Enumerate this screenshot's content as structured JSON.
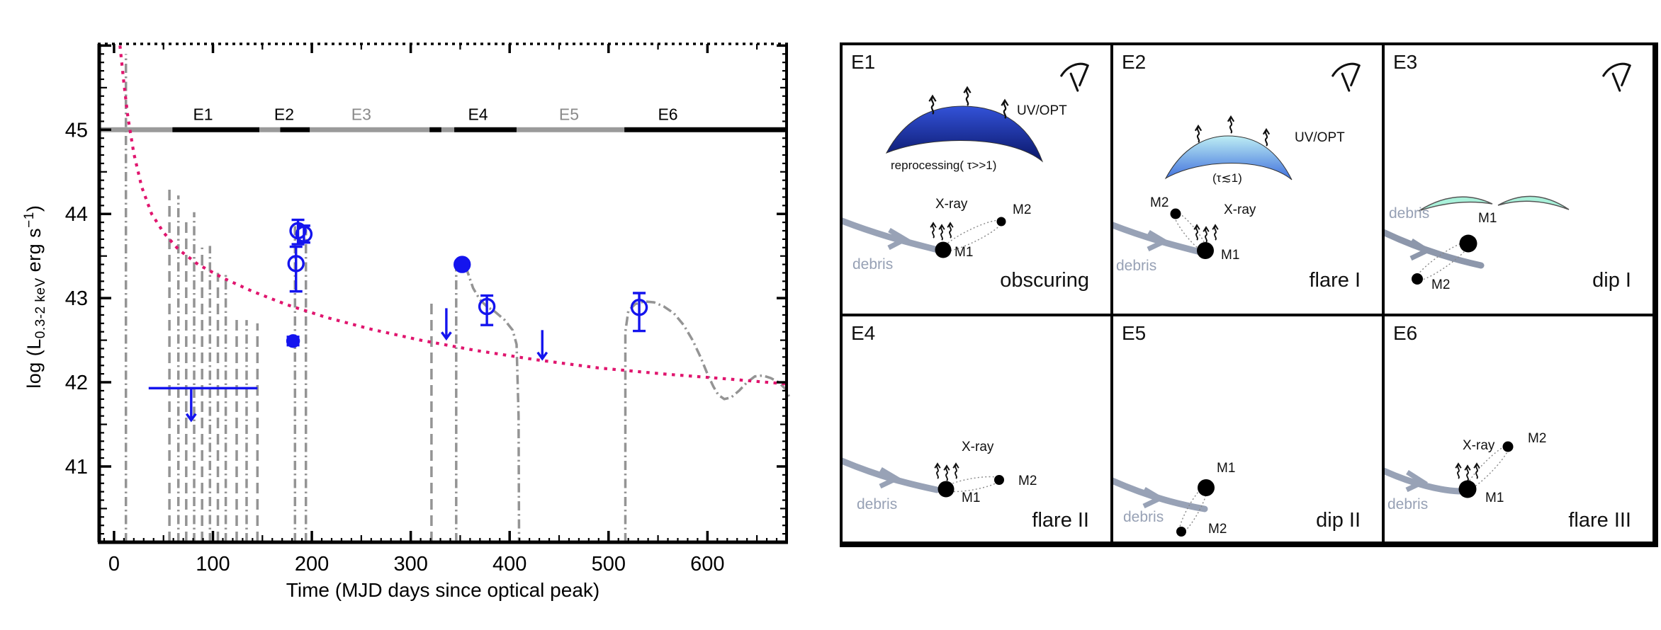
{
  "figure": {
    "description": "X-ray light curve with epochs E1-E6 and schematic cartoons"
  },
  "chart_data": {
    "type": "line",
    "title": "",
    "xlabel": "Time (MJD days since optical peak)",
    "ylabel": {
      "pre": "log (L",
      "sub": "0.3-2 keV",
      "mid": " erg s",
      "sup": "−1",
      "post": ")"
    },
    "xlim": [
      -15,
      680
    ],
    "ylim": [
      40.1,
      46.02
    ],
    "xticks": [
      0,
      100,
      200,
      300,
      400,
      500,
      600
    ],
    "yticks": [
      41,
      42,
      43,
      44,
      45
    ],
    "x_minor_step": 10,
    "y_minor_step": 0.1,
    "grid": false,
    "colors": {
      "data": "#1414ee",
      "decline": "#e0156e",
      "gray": "#949494",
      "bar_black": "#000000",
      "bar_gray": "#9a9a9a",
      "label_gray": "#8a8a8a",
      "label_black": "#000000"
    },
    "epoch_bar": {
      "y": 45,
      "segments": [
        {
          "x0": -15,
          "x1": 59,
          "color": "gray"
        },
        {
          "x0": 59,
          "x1": 147,
          "color": "black"
        },
        {
          "x0": 147,
          "x1": 168,
          "color": "gray"
        },
        {
          "x0": 168,
          "x1": 198,
          "color": "black"
        },
        {
          "x0": 198,
          "x1": 319,
          "color": "gray"
        },
        {
          "x0": 319,
          "x1": 331,
          "color": "black"
        },
        {
          "x0": 331,
          "x1": 344,
          "color": "gray"
        },
        {
          "x0": 344,
          "x1": 407,
          "color": "black"
        },
        {
          "x0": 407,
          "x1": 516,
          "color": "gray"
        },
        {
          "x0": 516,
          "x1": 680,
          "color": "black"
        }
      ],
      "labels": [
        {
          "text": "E1",
          "x": 90,
          "shade": "black"
        },
        {
          "text": "E2",
          "x": 172,
          "shade": "black"
        },
        {
          "text": "E3",
          "x": 250,
          "shade": "gray"
        },
        {
          "text": "E4",
          "x": 368,
          "shade": "black"
        },
        {
          "text": "E5",
          "x": 460,
          "shade": "gray"
        },
        {
          "text": "E6",
          "x": 560,
          "shade": "black"
        }
      ]
    },
    "decline_curve": {
      "points": [
        [
          6,
          46.0
        ],
        [
          10,
          45.55
        ],
        [
          14,
          45.15
        ],
        [
          20,
          44.72
        ],
        [
          28,
          44.32
        ],
        [
          38,
          44.0
        ],
        [
          50,
          43.78
        ],
        [
          65,
          43.58
        ],
        [
          85,
          43.4
        ],
        [
          110,
          43.24
        ],
        [
          140,
          43.08
        ],
        [
          175,
          42.92
        ],
        [
          215,
          42.77
        ],
        [
          260,
          42.63
        ],
        [
          310,
          42.5
        ],
        [
          365,
          42.38
        ],
        [
          425,
          42.27
        ],
        [
          490,
          42.17
        ],
        [
          555,
          42.1
        ],
        [
          620,
          42.04
        ],
        [
          680,
          41.98
        ]
      ]
    },
    "gray_segments": [
      {
        "dash": "dd",
        "pts": [
          [
            12,
            40.1
          ],
          [
            12,
            45.9
          ]
        ]
      },
      {
        "dash": "long",
        "pts": [
          [
            56,
            40.1
          ],
          [
            56,
            44.3
          ]
        ]
      },
      {
        "dash": "dd",
        "pts": [
          [
            65,
            40.1
          ],
          [
            65,
            44.22
          ]
        ]
      },
      {
        "dash": "long",
        "pts": [
          [
            73,
            40.1
          ],
          [
            73,
            43.95
          ]
        ]
      },
      {
        "dash": "dd",
        "pts": [
          [
            81,
            40.1
          ],
          [
            81,
            44.02
          ]
        ]
      },
      {
        "dash": "long",
        "pts": [
          [
            89,
            40.1
          ],
          [
            89,
            43.6
          ]
        ]
      },
      {
        "dash": "dd",
        "pts": [
          [
            97,
            40.1
          ],
          [
            97,
            43.62
          ]
        ]
      },
      {
        "dash": "long",
        "pts": [
          [
            105,
            40.1
          ],
          [
            105,
            43.3
          ]
        ]
      },
      {
        "dash": "dd",
        "pts": [
          [
            113,
            40.1
          ],
          [
            113,
            43.28
          ]
        ]
      },
      {
        "dash": "long",
        "pts": [
          [
            124,
            40.1
          ],
          [
            124,
            42.78
          ]
        ]
      },
      {
        "dash": "dd",
        "pts": [
          [
            134,
            40.1
          ],
          [
            134,
            42.74
          ]
        ]
      },
      {
        "dash": "long",
        "pts": [
          [
            145,
            40.1
          ],
          [
            145,
            42.7
          ]
        ]
      },
      {
        "dash": "dd",
        "pts": [
          [
            183,
            40.1
          ],
          [
            183,
            43.88
          ]
        ]
      },
      {
        "dash": "dd",
        "pts": [
          [
            194,
            40.1
          ],
          [
            194,
            43.82
          ]
        ]
      },
      {
        "dash": "long",
        "pts": [
          [
            321,
            40.1
          ],
          [
            321,
            42.95
          ]
        ]
      },
      {
        "dash": "dd",
        "pts": [
          [
            346,
            40.1
          ],
          [
            346,
            43.36
          ],
          [
            350,
            43.43
          ],
          [
            356,
            43.36
          ],
          [
            363,
            43.12
          ],
          [
            370,
            42.98
          ],
          [
            377,
            42.9
          ],
          [
            385,
            42.84
          ],
          [
            395,
            42.74
          ],
          [
            403,
            42.62
          ],
          [
            407,
            42.45
          ],
          [
            409,
            41.6
          ],
          [
            409.5,
            40.1
          ]
        ]
      },
      {
        "dash": "dd",
        "pts": [
          [
            517,
            40.1
          ],
          [
            517,
            42.6
          ],
          [
            520,
            42.85
          ],
          [
            527,
            42.93
          ],
          [
            536,
            42.96
          ],
          [
            546,
            42.95
          ],
          [
            556,
            42.9
          ],
          [
            566,
            42.82
          ],
          [
            576,
            42.68
          ],
          [
            585,
            42.5
          ],
          [
            593,
            42.3
          ],
          [
            600,
            42.1
          ],
          [
            606,
            41.95
          ],
          [
            611,
            41.85
          ],
          [
            617,
            41.8
          ],
          [
            624,
            41.82
          ],
          [
            632,
            41.9
          ],
          [
            640,
            42.0
          ],
          [
            648,
            42.07
          ],
          [
            656,
            42.08
          ],
          [
            664,
            42.05
          ],
          [
            672,
            42.0
          ],
          [
            679,
            41.92
          ],
          [
            683,
            41.82
          ]
        ]
      }
    ],
    "data_points": [
      {
        "x": 186,
        "y": 43.8,
        "eu": 0.13,
        "ed": 0.16,
        "style": "open"
      },
      {
        "x": 192,
        "y": 43.76,
        "eu": 0.1,
        "ed": 0.1,
        "style": "open"
      },
      {
        "x": 184,
        "y": 43.41,
        "eu": 0.2,
        "ed": 0.33,
        "style": "open"
      },
      {
        "x": 181,
        "y": 42.49,
        "eu": 0.05,
        "ed": 0.05,
        "style": "filled_small"
      },
      {
        "x": 352,
        "y": 43.4,
        "eu": 0.04,
        "ed": 0.04,
        "style": "filled"
      },
      {
        "x": 377,
        "y": 42.9,
        "eu": 0.13,
        "ed": 0.22,
        "style": "open"
      },
      {
        "x": 531,
        "y": 42.89,
        "eu": 0.17,
        "ed": 0.28,
        "style": "open"
      }
    ],
    "upper_limit_bar": {
      "y": 41.93,
      "x0": 35,
      "x1": 145,
      "arrow_x": 78,
      "arrow_drop": 0.38
    },
    "down_arrows": [
      {
        "x": 336,
        "y0": 42.88,
        "y1": 42.52
      },
      {
        "x": 433,
        "y0": 42.62,
        "y1": 42.28
      }
    ]
  },
  "panels": [
    {
      "id": "E1",
      "caption": "obscuring",
      "uvopt": "UV/OPT",
      "dome_label": "reprocessing( τ>>1)",
      "xray": "X-ray",
      "m1": "M1",
      "m2": "M2",
      "debris": "debris"
    },
    {
      "id": "E2",
      "caption": "flare I",
      "uvopt": "UV/OPT",
      "dome_label": "(τ≲1)",
      "xray": "X-ray",
      "m1": "M1",
      "m2": "M2",
      "debris": "debris"
    },
    {
      "id": "E3",
      "caption": "dip I",
      "m1": "M1",
      "m2": "M2",
      "debris": "debris"
    },
    {
      "id": "E4",
      "caption": "flare II",
      "xray": "X-ray",
      "m1": "M1",
      "m2": "M2",
      "debris": "debris"
    },
    {
      "id": "E5",
      "caption": "dip II",
      "m1": "M1",
      "m2": "M2",
      "debris": "debris"
    },
    {
      "id": "E6",
      "caption": "flare III",
      "xray": "X-ray",
      "m1": "M1",
      "m2": "M2",
      "debris": "debris"
    }
  ]
}
